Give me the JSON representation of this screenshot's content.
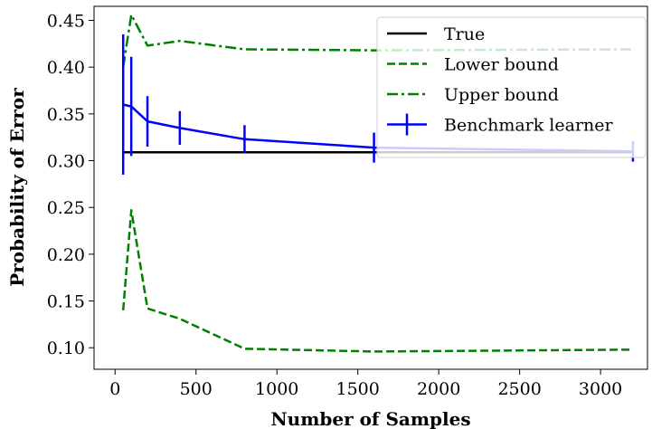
{
  "chart_data": {
    "type": "line",
    "xlabel": "Number of Samples",
    "ylabel": "Probability of Error",
    "xlim": [
      -130,
      3290
    ],
    "ylim": [
      0.077,
      0.465
    ],
    "x_ticks": [
      0,
      500,
      1000,
      1500,
      2000,
      2500,
      3000
    ],
    "y_ticks": [
      0.1,
      0.15,
      0.2,
      0.25,
      0.3,
      0.35,
      0.4,
      0.45
    ],
    "x_tick_labels": [
      "0",
      "500",
      "1000",
      "1500",
      "2000",
      "2500",
      "3000"
    ],
    "y_tick_labels": [
      "0.10",
      "0.15",
      "0.20",
      "0.25",
      "0.30",
      "0.35",
      "0.40",
      "0.45"
    ],
    "grid": false,
    "legend_position": "top-right",
    "x": [
      50,
      100,
      200,
      400,
      800,
      1600,
      3200
    ],
    "series": [
      {
        "name": "True",
        "style": "solid",
        "color": "#000000",
        "values": [
          0.309,
          0.309,
          0.309,
          0.309,
          0.309,
          0.309,
          0.309
        ]
      },
      {
        "name": "Lower bound",
        "style": "dashed",
        "color": "#008000",
        "values": [
          0.14,
          0.247,
          0.142,
          0.131,
          0.099,
          0.096,
          0.098
        ]
      },
      {
        "name": "Upper bound",
        "style": "dashdot",
        "color": "#008000",
        "values": [
          0.4,
          0.456,
          0.423,
          0.428,
          0.419,
          0.418,
          0.419
        ]
      },
      {
        "name": "Benchmark learner",
        "style": "solid-errorbar",
        "color": "#0000ff",
        "values": [
          0.36,
          0.358,
          0.342,
          0.335,
          0.323,
          0.314,
          0.31
        ],
        "errors": [
          0.075,
          0.053,
          0.027,
          0.018,
          0.015,
          0.016,
          0.011
        ]
      }
    ]
  }
}
